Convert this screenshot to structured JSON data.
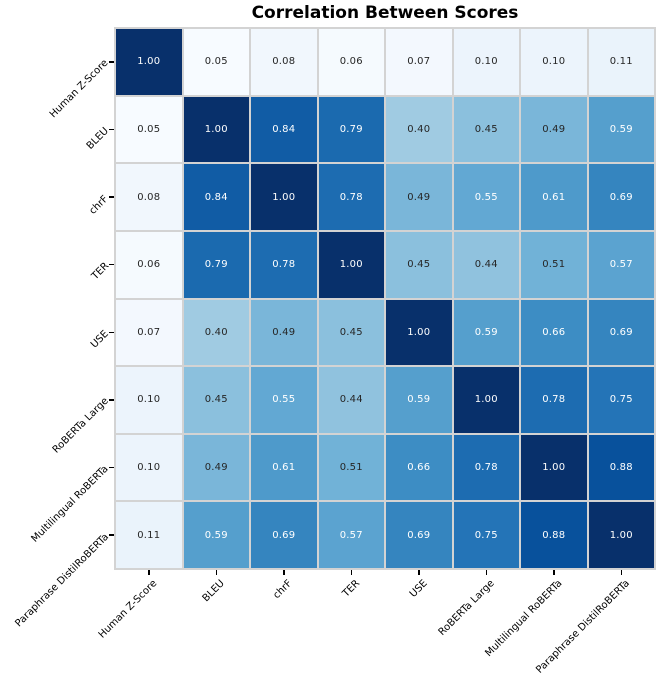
{
  "title": "Correlation Between Scores",
  "chart_data": {
    "type": "heatmap",
    "title": "Correlation Between Scores",
    "categories": [
      "Human Z-Score",
      "BLEU",
      "chrF",
      "TER",
      "USE",
      "RoBERTa Large",
      "Multilingual RoBERTa",
      "Paraphrase DistilRoBERTa"
    ],
    "matrix": [
      [
        1.0,
        0.05,
        0.08,
        0.06,
        0.07,
        0.1,
        0.1,
        0.11
      ],
      [
        0.05,
        1.0,
        0.84,
        0.79,
        0.4,
        0.45,
        0.49,
        0.59
      ],
      [
        0.08,
        0.84,
        1.0,
        0.78,
        0.49,
        0.55,
        0.61,
        0.69
      ],
      [
        0.06,
        0.79,
        0.78,
        1.0,
        0.45,
        0.44,
        0.51,
        0.57
      ],
      [
        0.07,
        0.4,
        0.49,
        0.45,
        1.0,
        0.59,
        0.66,
        0.69
      ],
      [
        0.1,
        0.45,
        0.55,
        0.44,
        0.59,
        1.0,
        0.78,
        0.75
      ],
      [
        0.1,
        0.49,
        0.61,
        0.51,
        0.66,
        0.78,
        1.0,
        0.88
      ],
      [
        0.11,
        0.59,
        0.69,
        0.57,
        0.69,
        0.75,
        0.88,
        1.0
      ]
    ],
    "value_decimals": 2,
    "annotated": true,
    "colormap": "Blues",
    "vmin": 0.05,
    "vmax": 1.0,
    "colormap_stops": [
      [
        0.0,
        "#f7fbff"
      ],
      [
        0.125,
        "#deebf7"
      ],
      [
        0.25,
        "#c6dbef"
      ],
      [
        0.375,
        "#9ecae1"
      ],
      [
        0.5,
        "#6baed6"
      ],
      [
        0.625,
        "#4292c6"
      ],
      [
        0.75,
        "#2171b5"
      ],
      [
        0.875,
        "#08519c"
      ],
      [
        1.0,
        "#08306b"
      ]
    ],
    "annot_dark_text_color": "#262626",
    "annot_light_text_color": "#ffffff",
    "light_text_value_threshold": 0.53,
    "grid_line_color": "#d3d3d3",
    "tick_color": "#000000",
    "legend": "none",
    "x_label_rotation_deg": 45,
    "y_label_rotation_deg": 45
  }
}
